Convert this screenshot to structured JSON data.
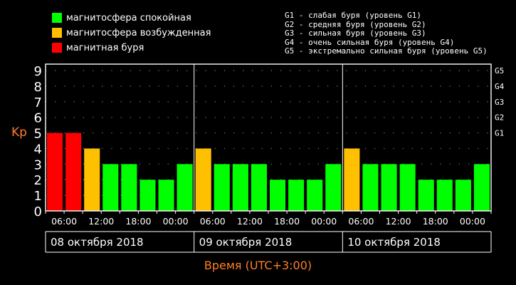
{
  "legend": {
    "items": [
      {
        "label": "магнитосфера спокойная",
        "color": "#00ff00"
      },
      {
        "label": "магнитосфера возбужденная",
        "color": "#ffc000"
      },
      {
        "label": "магнитная буря",
        "color": "#ff0000"
      }
    ],
    "storm_levels": [
      "G1 - слабая буря (уровень G1)",
      "G2 - средняя буря (уровень G2)",
      "G3 - сильная буря (уровень G3)",
      "G4 - очень сильная буря (уровень G4)",
      "G5 - экстремально сильная буря (уровень G5)"
    ]
  },
  "colors": {
    "accent": "#ff7f27",
    "grid": "#808080",
    "axis": "#ffffff"
  },
  "chart_data": {
    "type": "bar",
    "ylabel": "Kp",
    "xlabel": "Время (UTC+3:00)",
    "ylim": [
      0,
      9
    ],
    "yticks": [
      0,
      1,
      2,
      3,
      4,
      5,
      6,
      7,
      8,
      9
    ],
    "right_ticks": [
      {
        "label": "G1",
        "value": 5
      },
      {
        "label": "G2",
        "value": 6
      },
      {
        "label": "G3",
        "value": 7
      },
      {
        "label": "G4",
        "value": 8
      },
      {
        "label": "G5",
        "value": 9
      }
    ],
    "grid": "dotted",
    "bar_color_rule": {
      "quiet_below": 4,
      "excited_below": 5
    },
    "bars_per_day": 8,
    "days": [
      "08 октября 2018",
      "09 октября 2018",
      "10 октября 2018"
    ],
    "time_labels": [
      "06:00",
      "12:00",
      "18:00",
      "00:00",
      "06:00",
      "12:00",
      "18:00",
      "00:00",
      "06:00",
      "12:00",
      "18:00",
      "00:00"
    ],
    "time_label_bar_index": [
      1,
      3,
      5,
      7,
      9,
      11,
      13,
      15,
      17,
      19,
      21,
      23
    ],
    "values": [
      5,
      5,
      4,
      3,
      3,
      2,
      2,
      3,
      4,
      3,
      3,
      3,
      2,
      2,
      2,
      3,
      4,
      3,
      3,
      3,
      2,
      2,
      2,
      3
    ],
    "bar_count": 24
  }
}
